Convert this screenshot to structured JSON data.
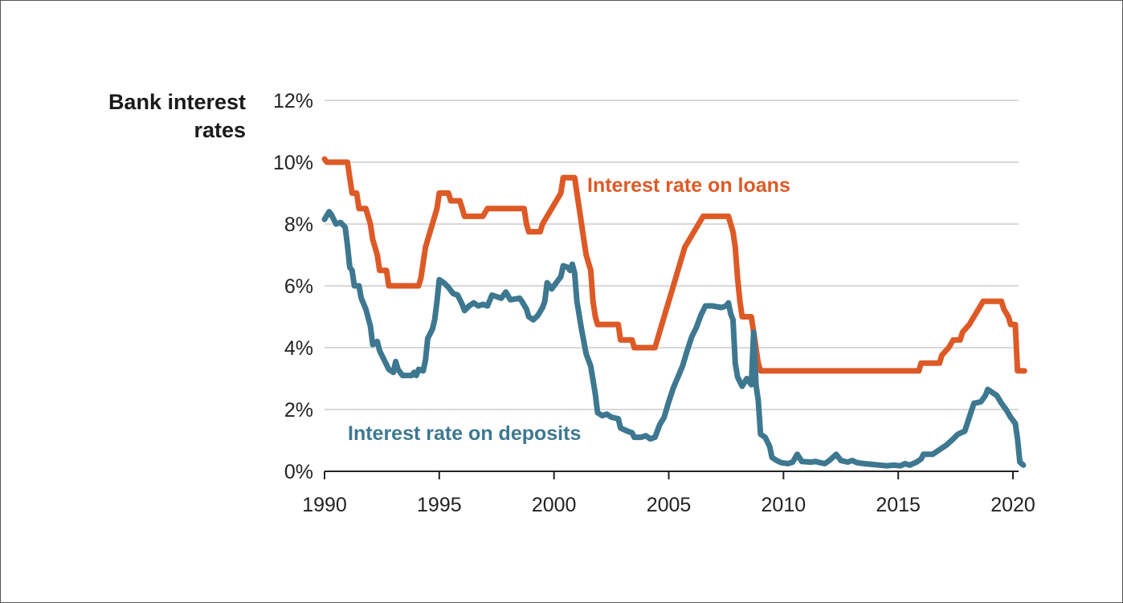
{
  "chart_data": {
    "type": "line",
    "title_lines": [
      "Bank interest",
      "rates"
    ],
    "xlabel": "",
    "ylabel": "",
    "xlim": [
      1990,
      2020.5
    ],
    "ylim": [
      0,
      12
    ],
    "x_ticks": [
      1990,
      1995,
      2000,
      2005,
      2010,
      2015,
      2020
    ],
    "y_ticks": [
      0,
      2,
      4,
      6,
      8,
      10,
      12
    ],
    "y_tick_labels": [
      "0%",
      "2%",
      "4%",
      "6%",
      "8%",
      "10%",
      "12%"
    ],
    "grid": "horizontal",
    "series": [
      {
        "name": "Interest rate on loans",
        "color": "#dd5a26",
        "points": [
          [
            1990.0,
            10.1
          ],
          [
            1990.1,
            10.0
          ],
          [
            1991.0,
            10.0
          ],
          [
            1991.1,
            9.5
          ],
          [
            1991.2,
            9.0
          ],
          [
            1991.4,
            9.0
          ],
          [
            1991.5,
            8.5
          ],
          [
            1991.8,
            8.5
          ],
          [
            1992.0,
            8.0
          ],
          [
            1992.1,
            7.5
          ],
          [
            1992.3,
            7.0
          ],
          [
            1992.4,
            6.5
          ],
          [
            1992.7,
            6.5
          ],
          [
            1992.8,
            6.0
          ],
          [
            1994.1,
            6.0
          ],
          [
            1994.2,
            6.25
          ],
          [
            1994.3,
            6.75
          ],
          [
            1994.4,
            7.25
          ],
          [
            1994.6,
            7.75
          ],
          [
            1994.8,
            8.25
          ],
          [
            1994.9,
            8.5
          ],
          [
            1995.0,
            9.0
          ],
          [
            1995.4,
            9.0
          ],
          [
            1995.5,
            8.75
          ],
          [
            1995.9,
            8.75
          ],
          [
            1996.0,
            8.5
          ],
          [
            1996.1,
            8.25
          ],
          [
            1996.9,
            8.25
          ],
          [
            1997.1,
            8.5
          ],
          [
            1998.7,
            8.5
          ],
          [
            1998.8,
            8.0
          ],
          [
            1998.9,
            7.75
          ],
          [
            1999.4,
            7.75
          ],
          [
            1999.5,
            8.0
          ],
          [
            1999.7,
            8.25
          ],
          [
            1999.9,
            8.5
          ],
          [
            2000.1,
            8.75
          ],
          [
            2000.3,
            9.0
          ],
          [
            2000.4,
            9.5
          ],
          [
            2000.9,
            9.5
          ],
          [
            2001.0,
            9.0
          ],
          [
            2001.1,
            8.5
          ],
          [
            2001.3,
            7.5
          ],
          [
            2001.4,
            7.0
          ],
          [
            2001.6,
            6.5
          ],
          [
            2001.7,
            5.5
          ],
          [
            2001.8,
            5.0
          ],
          [
            2001.9,
            4.75
          ],
          [
            2002.8,
            4.75
          ],
          [
            2002.9,
            4.25
          ],
          [
            2003.4,
            4.25
          ],
          [
            2003.5,
            4.0
          ],
          [
            2004.4,
            4.0
          ],
          [
            2004.5,
            4.25
          ],
          [
            2004.7,
            4.75
          ],
          [
            2004.9,
            5.25
          ],
          [
            2005.1,
            5.75
          ],
          [
            2005.3,
            6.25
          ],
          [
            2005.5,
            6.75
          ],
          [
            2005.7,
            7.25
          ],
          [
            2006.1,
            7.75
          ],
          [
            2006.3,
            8.0
          ],
          [
            2006.5,
            8.25
          ],
          [
            2007.6,
            8.25
          ],
          [
            2007.8,
            7.75
          ],
          [
            2007.9,
            7.25
          ],
          [
            2008.0,
            6.25
          ],
          [
            2008.1,
            5.5
          ],
          [
            2008.2,
            5.0
          ],
          [
            2008.6,
            5.0
          ],
          [
            2008.7,
            4.5
          ],
          [
            2008.8,
            4.0
          ],
          [
            2008.9,
            3.5
          ],
          [
            2009.0,
            3.25
          ],
          [
            2015.9,
            3.25
          ],
          [
            2016.0,
            3.5
          ],
          [
            2016.8,
            3.5
          ],
          [
            2016.9,
            3.75
          ],
          [
            2017.2,
            4.0
          ],
          [
            2017.4,
            4.25
          ],
          [
            2017.7,
            4.25
          ],
          [
            2017.8,
            4.5
          ],
          [
            2018.1,
            4.75
          ],
          [
            2018.3,
            5.0
          ],
          [
            2018.5,
            5.25
          ],
          [
            2018.7,
            5.5
          ],
          [
            2019.5,
            5.5
          ],
          [
            2019.6,
            5.25
          ],
          [
            2019.8,
            5.0
          ],
          [
            2019.9,
            4.75
          ],
          [
            2020.1,
            4.75
          ],
          [
            2020.2,
            3.25
          ],
          [
            2020.5,
            3.25
          ]
        ]
      },
      {
        "name": "Interest rate on deposits",
        "color": "#3d7890",
        "points": [
          [
            1990.0,
            8.15
          ],
          [
            1990.2,
            8.4
          ],
          [
            1990.3,
            8.3
          ],
          [
            1990.5,
            8.0
          ],
          [
            1990.7,
            8.05
          ],
          [
            1990.9,
            7.9
          ],
          [
            1991.0,
            7.3
          ],
          [
            1991.1,
            6.6
          ],
          [
            1991.2,
            6.5
          ],
          [
            1991.3,
            6.0
          ],
          [
            1991.5,
            6.0
          ],
          [
            1991.6,
            5.6
          ],
          [
            1991.8,
            5.25
          ],
          [
            1992.0,
            4.7
          ],
          [
            1992.1,
            4.1
          ],
          [
            1992.3,
            4.2
          ],
          [
            1992.4,
            3.9
          ],
          [
            1992.6,
            3.6
          ],
          [
            1992.8,
            3.3
          ],
          [
            1993.0,
            3.2
          ],
          [
            1993.1,
            3.55
          ],
          [
            1993.2,
            3.3
          ],
          [
            1993.4,
            3.1
          ],
          [
            1993.8,
            3.1
          ],
          [
            1993.9,
            3.2
          ],
          [
            1994.0,
            3.1
          ],
          [
            1994.1,
            3.3
          ],
          [
            1994.3,
            3.25
          ],
          [
            1994.4,
            3.6
          ],
          [
            1994.5,
            4.3
          ],
          [
            1994.7,
            4.6
          ],
          [
            1994.8,
            4.9
          ],
          [
            1994.9,
            5.5
          ],
          [
            1995.0,
            6.2
          ],
          [
            1995.2,
            6.1
          ],
          [
            1995.4,
            5.95
          ],
          [
            1995.6,
            5.75
          ],
          [
            1995.8,
            5.7
          ],
          [
            1996.0,
            5.4
          ],
          [
            1996.1,
            5.2
          ],
          [
            1996.3,
            5.35
          ],
          [
            1996.5,
            5.45
          ],
          [
            1996.7,
            5.35
          ],
          [
            1996.9,
            5.4
          ],
          [
            1997.1,
            5.35
          ],
          [
            1997.3,
            5.7
          ],
          [
            1997.5,
            5.65
          ],
          [
            1997.7,
            5.6
          ],
          [
            1997.9,
            5.8
          ],
          [
            1998.1,
            5.55
          ],
          [
            1998.5,
            5.6
          ],
          [
            1998.6,
            5.5
          ],
          [
            1998.8,
            5.25
          ],
          [
            1998.9,
            5.0
          ],
          [
            1999.1,
            4.9
          ],
          [
            1999.3,
            5.05
          ],
          [
            1999.5,
            5.3
          ],
          [
            1999.6,
            5.5
          ],
          [
            1999.7,
            6.1
          ],
          [
            1999.9,
            5.9
          ],
          [
            2000.1,
            6.1
          ],
          [
            2000.3,
            6.3
          ],
          [
            2000.4,
            6.65
          ],
          [
            2000.6,
            6.6
          ],
          [
            2000.7,
            6.5
          ],
          [
            2000.8,
            6.7
          ],
          [
            2000.9,
            6.4
          ],
          [
            2001.0,
            5.5
          ],
          [
            2001.2,
            4.6
          ],
          [
            2001.4,
            3.8
          ],
          [
            2001.6,
            3.4
          ],
          [
            2001.8,
            2.5
          ],
          [
            2001.9,
            1.9
          ],
          [
            2002.1,
            1.8
          ],
          [
            2002.3,
            1.85
          ],
          [
            2002.5,
            1.75
          ],
          [
            2002.8,
            1.7
          ],
          [
            2002.9,
            1.4
          ],
          [
            2003.2,
            1.3
          ],
          [
            2003.4,
            1.25
          ],
          [
            2003.5,
            1.1
          ],
          [
            2003.8,
            1.1
          ],
          [
            2004.0,
            1.15
          ],
          [
            2004.2,
            1.05
          ],
          [
            2004.4,
            1.1
          ],
          [
            2004.6,
            1.5
          ],
          [
            2004.8,
            1.75
          ],
          [
            2005.0,
            2.25
          ],
          [
            2005.2,
            2.7
          ],
          [
            2005.4,
            3.05
          ],
          [
            2005.6,
            3.4
          ],
          [
            2005.8,
            3.9
          ],
          [
            2006.0,
            4.35
          ],
          [
            2006.2,
            4.65
          ],
          [
            2006.4,
            5.05
          ],
          [
            2006.6,
            5.35
          ],
          [
            2006.9,
            5.35
          ],
          [
            2007.3,
            5.3
          ],
          [
            2007.5,
            5.35
          ],
          [
            2007.6,
            5.45
          ],
          [
            2007.7,
            5.1
          ],
          [
            2007.8,
            4.9
          ],
          [
            2007.9,
            3.5
          ],
          [
            2008.0,
            3.05
          ],
          [
            2008.2,
            2.75
          ],
          [
            2008.4,
            3.0
          ],
          [
            2008.6,
            2.8
          ],
          [
            2008.7,
            4.5
          ],
          [
            2008.8,
            2.8
          ],
          [
            2008.9,
            2.3
          ],
          [
            2009.0,
            1.2
          ],
          [
            2009.2,
            1.1
          ],
          [
            2009.4,
            0.8
          ],
          [
            2009.5,
            0.45
          ],
          [
            2009.7,
            0.35
          ],
          [
            2009.9,
            0.28
          ],
          [
            2010.2,
            0.25
          ],
          [
            2010.4,
            0.3
          ],
          [
            2010.6,
            0.55
          ],
          [
            2010.8,
            0.32
          ],
          [
            2011.2,
            0.3
          ],
          [
            2011.4,
            0.32
          ],
          [
            2011.6,
            0.28
          ],
          [
            2011.8,
            0.25
          ],
          [
            2012.0,
            0.35
          ],
          [
            2012.3,
            0.55
          ],
          [
            2012.5,
            0.35
          ],
          [
            2012.8,
            0.3
          ],
          [
            2013.0,
            0.35
          ],
          [
            2013.2,
            0.28
          ],
          [
            2013.5,
            0.25
          ],
          [
            2013.9,
            0.22
          ],
          [
            2014.2,
            0.2
          ],
          [
            2014.5,
            0.18
          ],
          [
            2014.8,
            0.2
          ],
          [
            2015.1,
            0.18
          ],
          [
            2015.3,
            0.25
          ],
          [
            2015.5,
            0.2
          ],
          [
            2015.8,
            0.3
          ],
          [
            2016.0,
            0.4
          ],
          [
            2016.1,
            0.55
          ],
          [
            2016.5,
            0.55
          ],
          [
            2016.7,
            0.65
          ],
          [
            2016.9,
            0.75
          ],
          [
            2017.1,
            0.85
          ],
          [
            2017.4,
            1.05
          ],
          [
            2017.6,
            1.2
          ],
          [
            2017.9,
            1.3
          ],
          [
            2018.1,
            1.75
          ],
          [
            2018.3,
            2.2
          ],
          [
            2018.6,
            2.25
          ],
          [
            2018.8,
            2.45
          ],
          [
            2018.9,
            2.65
          ],
          [
            2019.1,
            2.55
          ],
          [
            2019.3,
            2.45
          ],
          [
            2019.5,
            2.2
          ],
          [
            2019.7,
            2.0
          ],
          [
            2019.9,
            1.75
          ],
          [
            2020.1,
            1.55
          ],
          [
            2020.2,
            1.05
          ],
          [
            2020.3,
            0.3
          ],
          [
            2020.45,
            0.2
          ]
        ]
      }
    ]
  }
}
